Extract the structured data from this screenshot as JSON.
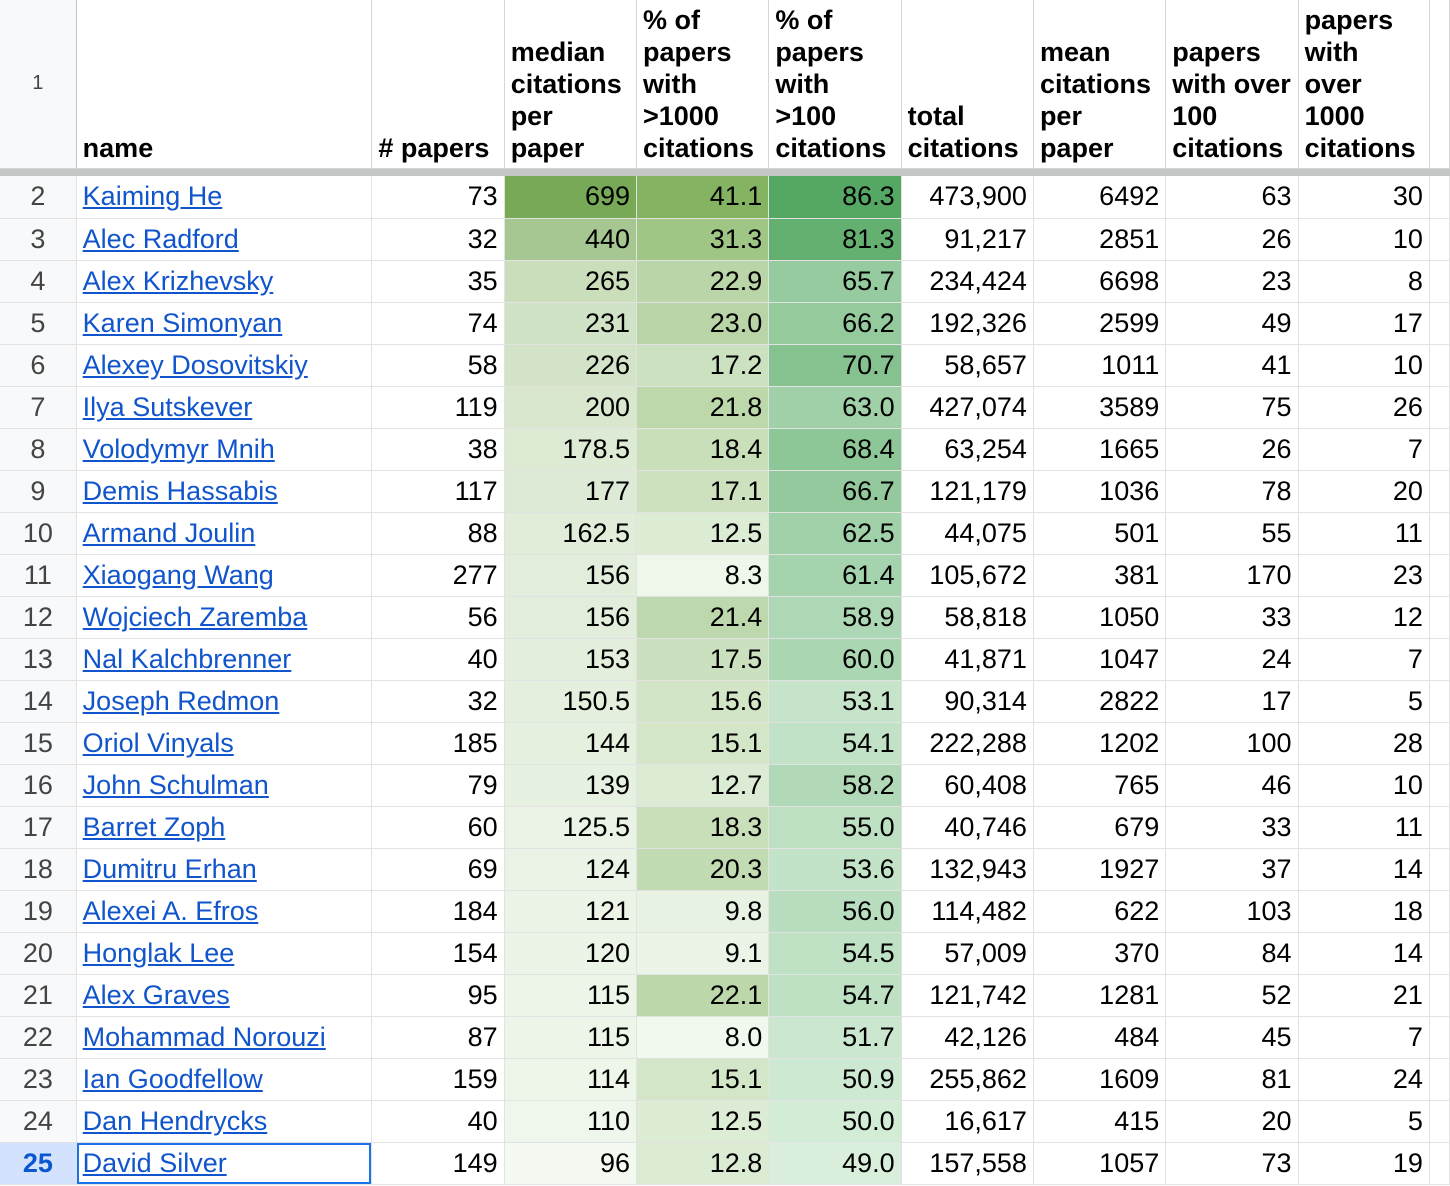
{
  "header": {
    "row_number": "1",
    "columns": [
      {
        "label": "name",
        "align": "left"
      },
      {
        "label": "# papers",
        "align": "left"
      },
      {
        "label": "median\ncitations\nper\npaper",
        "align": "left"
      },
      {
        "label": "% of\npapers\nwith\n>1000\ncitations",
        "align": "left"
      },
      {
        "label": "% of\npapers\nwith\n>100\ncitations",
        "align": "left"
      },
      {
        "label": "total\ncitations",
        "align": "left"
      },
      {
        "label": "mean\ncitations\nper\npaper",
        "align": "left"
      },
      {
        "label": "papers\nwith over\n100\ncitations",
        "align": "left"
      },
      {
        "label": "papers\nwith over\n1000\ncitations",
        "align": "left"
      }
    ]
  },
  "colors": {
    "link": "#1155cc",
    "selection_border": "#1a73e8",
    "active_row_header": "#d3e3fd",
    "heat_median_scale": [
      "#f4f9f1",
      "#77a956"
    ],
    "heat_pct1000_scale": [
      "#f1f8ee",
      "#84b462"
    ],
    "heat_pct100_scale": [
      "#d9efdc",
      "#55a863"
    ]
  },
  "heatmap_ranges": {
    "median": [
      96,
      699
    ],
    "pct1000": [
      8.0,
      41.1
    ],
    "pct100": [
      49.0,
      86.3
    ]
  },
  "selected_row": "25",
  "rows": [
    {
      "row": "2",
      "name": "Kaiming He",
      "papers": "73",
      "median": "699",
      "pct1000": "41.1",
      "pct100": "86.3",
      "total": "473,900",
      "mean": "6492",
      "over100": "63",
      "over1000": "30"
    },
    {
      "row": "3",
      "name": "Alec Radford",
      "papers": "32",
      "median": "440",
      "pct1000": "31.3",
      "pct100": "81.3",
      "total": "91,217",
      "mean": "2851",
      "over100": "26",
      "over1000": "10"
    },
    {
      "row": "4",
      "name": "Alex Krizhevsky",
      "papers": "35",
      "median": "265",
      "pct1000": "22.9",
      "pct100": "65.7",
      "total": "234,424",
      "mean": "6698",
      "over100": "23",
      "over1000": "8"
    },
    {
      "row": "5",
      "name": "Karen Simonyan",
      "papers": "74",
      "median": "231",
      "pct1000": "23.0",
      "pct100": "66.2",
      "total": "192,326",
      "mean": "2599",
      "over100": "49",
      "over1000": "17"
    },
    {
      "row": "6",
      "name": "Alexey Dosovitskiy",
      "papers": "58",
      "median": "226",
      "pct1000": "17.2",
      "pct100": "70.7",
      "total": "58,657",
      "mean": "1011",
      "over100": "41",
      "over1000": "10"
    },
    {
      "row": "7",
      "name": "Ilya Sutskever",
      "papers": "119",
      "median": "200",
      "pct1000": "21.8",
      "pct100": "63.0",
      "total": "427,074",
      "mean": "3589",
      "over100": "75",
      "over1000": "26"
    },
    {
      "row": "8",
      "name": "Volodymyr Mnih",
      "papers": "38",
      "median": "178.5",
      "pct1000": "18.4",
      "pct100": "68.4",
      "total": "63,254",
      "mean": "1665",
      "over100": "26",
      "over1000": "7"
    },
    {
      "row": "9",
      "name": "Demis Hassabis",
      "papers": "117",
      "median": "177",
      "pct1000": "17.1",
      "pct100": "66.7",
      "total": "121,179",
      "mean": "1036",
      "over100": "78",
      "over1000": "20"
    },
    {
      "row": "10",
      "name": "Armand Joulin",
      "papers": "88",
      "median": "162.5",
      "pct1000": "12.5",
      "pct100": "62.5",
      "total": "44,075",
      "mean": "501",
      "over100": "55",
      "over1000": "11"
    },
    {
      "row": "11",
      "name": "Xiaogang Wang",
      "papers": "277",
      "median": "156",
      "pct1000": "8.3",
      "pct100": "61.4",
      "total": "105,672",
      "mean": "381",
      "over100": "170",
      "over1000": "23"
    },
    {
      "row": "12",
      "name": "Wojciech Zaremba",
      "papers": "56",
      "median": "156",
      "pct1000": "21.4",
      "pct100": "58.9",
      "total": "58,818",
      "mean": "1050",
      "over100": "33",
      "over1000": "12"
    },
    {
      "row": "13",
      "name": "Nal Kalchbrenner",
      "papers": "40",
      "median": "153",
      "pct1000": "17.5",
      "pct100": "60.0",
      "total": "41,871",
      "mean": "1047",
      "over100": "24",
      "over1000": "7"
    },
    {
      "row": "14",
      "name": "Joseph Redmon",
      "papers": "32",
      "median": "150.5",
      "pct1000": "15.6",
      "pct100": "53.1",
      "total": "90,314",
      "mean": "2822",
      "over100": "17",
      "over1000": "5"
    },
    {
      "row": "15",
      "name": "Oriol Vinyals",
      "papers": "185",
      "median": "144",
      "pct1000": "15.1",
      "pct100": "54.1",
      "total": "222,288",
      "mean": "1202",
      "over100": "100",
      "over1000": "28"
    },
    {
      "row": "16",
      "name": "John Schulman",
      "papers": "79",
      "median": "139",
      "pct1000": "12.7",
      "pct100": "58.2",
      "total": "60,408",
      "mean": "765",
      "over100": "46",
      "over1000": "10"
    },
    {
      "row": "17",
      "name": "Barret Zoph",
      "papers": "60",
      "median": "125.5",
      "pct1000": "18.3",
      "pct100": "55.0",
      "total": "40,746",
      "mean": "679",
      "over100": "33",
      "over1000": "11"
    },
    {
      "row": "18",
      "name": "Dumitru Erhan",
      "papers": "69",
      "median": "124",
      "pct1000": "20.3",
      "pct100": "53.6",
      "total": "132,943",
      "mean": "1927",
      "over100": "37",
      "over1000": "14"
    },
    {
      "row": "19",
      "name": "Alexei A. Efros",
      "papers": "184",
      "median": "121",
      "pct1000": "9.8",
      "pct100": "56.0",
      "total": "114,482",
      "mean": "622",
      "over100": "103",
      "over1000": "18"
    },
    {
      "row": "20",
      "name": "Honglak Lee",
      "papers": "154",
      "median": "120",
      "pct1000": "9.1",
      "pct100": "54.5",
      "total": "57,009",
      "mean": "370",
      "over100": "84",
      "over1000": "14"
    },
    {
      "row": "21",
      "name": "Alex Graves",
      "papers": "95",
      "median": "115",
      "pct1000": "22.1",
      "pct100": "54.7",
      "total": "121,742",
      "mean": "1281",
      "over100": "52",
      "over1000": "21"
    },
    {
      "row": "22",
      "name": "Mohammad Norouzi",
      "papers": "87",
      "median": "115",
      "pct1000": "8.0",
      "pct100": "51.7",
      "total": "42,126",
      "mean": "484",
      "over100": "45",
      "over1000": "7"
    },
    {
      "row": "23",
      "name": "Ian Goodfellow",
      "papers": "159",
      "median": "114",
      "pct1000": "15.1",
      "pct100": "50.9",
      "total": "255,862",
      "mean": "1609",
      "over100": "81",
      "over1000": "24"
    },
    {
      "row": "24",
      "name": "Dan Hendrycks",
      "papers": "40",
      "median": "110",
      "pct1000": "12.5",
      "pct100": "50.0",
      "total": "16,617",
      "mean": "415",
      "over100": "20",
      "over1000": "5"
    },
    {
      "row": "25",
      "name": "David Silver",
      "papers": "149",
      "median": "96",
      "pct1000": "12.8",
      "pct100": "49.0",
      "total": "157,558",
      "mean": "1057",
      "over100": "73",
      "over1000": "19"
    }
  ]
}
